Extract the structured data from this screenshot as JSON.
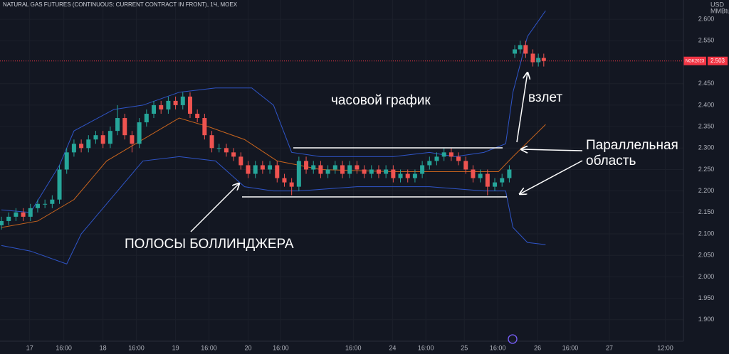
{
  "chart_data": {
    "type": "candlestick",
    "title": "NATURAL GAS FUTURES (CONTINUOUS: CURRENT CONTRACT IN FRONT), 1Ч, MOEX",
    "currency": "USD",
    "unit": "MMBtu",
    "up_color": "#26a69a",
    "down_color": "#ef5350",
    "grid": true,
    "xlim": [
      0,
      188
    ],
    "ylim": [
      1.85,
      2.645
    ],
    "xticks": [
      {
        "value": 7.8,
        "label": "17"
      },
      {
        "value": 17.2,
        "label": "16:00"
      },
      {
        "value": 28,
        "label": "18"
      },
      {
        "value": 37.2,
        "label": "16:00"
      },
      {
        "value": 48,
        "label": "19"
      },
      {
        "value": 57.2,
        "label": "16:00"
      },
      {
        "value": 68,
        "label": "20"
      },
      {
        "value": 77,
        "label": "16:00"
      },
      {
        "value": 97,
        "label": "16:00"
      },
      {
        "value": 107.8,
        "label": "24"
      },
      {
        "value": 117,
        "label": "16:00"
      },
      {
        "value": 127.6,
        "label": "25"
      },
      {
        "value": 136.8,
        "label": "16:00"
      },
      {
        "value": 147.8,
        "label": "26"
      },
      {
        "value": 156.8,
        "label": "16:00"
      },
      {
        "value": 167.6,
        "label": "27"
      },
      {
        "value": 183,
        "label": "12:00"
      }
    ],
    "yticks": [
      {
        "value": 2.6,
        "label": "2.600"
      },
      {
        "value": 2.55,
        "label": "2.550"
      },
      {
        "value": 2.45,
        "label": "2.450"
      },
      {
        "value": 2.4,
        "label": "2.400"
      },
      {
        "value": 2.35,
        "label": "2.350"
      },
      {
        "value": 2.3,
        "label": "2.300"
      },
      {
        "value": 2.25,
        "label": "2.250"
      },
      {
        "value": 2.2,
        "label": "2.200"
      },
      {
        "value": 2.15,
        "label": "2.150"
      },
      {
        "value": 2.1,
        "label": "2.100"
      },
      {
        "value": 2.05,
        "label": "2.050"
      },
      {
        "value": 2.0,
        "label": "2.000"
      },
      {
        "value": 1.95,
        "label": "1.950"
      },
      {
        "value": 1.9,
        "label": "1.900"
      }
    ],
    "x": [
      0,
      2,
      4,
      6,
      8,
      10,
      12,
      14,
      16,
      18,
      20,
      22,
      24,
      26,
      28,
      30,
      32,
      34,
      36,
      38,
      40,
      42,
      44,
      46,
      48,
      50,
      52,
      54,
      56,
      58,
      60,
      62,
      64,
      66,
      68,
      70,
      72,
      74,
      76,
      78,
      80,
      82,
      84,
      86,
      88,
      90,
      92,
      94,
      96,
      98,
      100,
      102,
      104,
      106,
      108,
      110,
      112,
      114,
      116,
      118,
      120,
      122,
      124,
      126,
      128,
      130,
      132,
      134,
      136,
      138,
      140,
      141.5,
      143,
      144.5,
      146.5,
      148,
      149.5
    ],
    "open": [
      2.12,
      2.13,
      2.14,
      2.15,
      2.14,
      2.16,
      2.17,
      2.17,
      2.18,
      2.25,
      2.29,
      2.31,
      2.3,
      2.32,
      2.33,
      2.31,
      2.34,
      2.37,
      2.33,
      2.31,
      2.36,
      2.38,
      2.4,
      2.39,
      2.41,
      2.4,
      2.42,
      2.38,
      2.37,
      2.33,
      2.3,
      2.3,
      2.29,
      2.28,
      2.26,
      2.24,
      2.26,
      2.25,
      2.26,
      2.23,
      2.22,
      2.21,
      2.27,
      2.25,
      2.26,
      2.24,
      2.25,
      2.26,
      2.24,
      2.26,
      2.25,
      2.24,
      2.25,
      2.24,
      2.25,
      2.23,
      2.24,
      2.23,
      2.24,
      2.26,
      2.27,
      2.28,
      2.29,
      2.28,
      2.27,
      2.25,
      2.23,
      2.24,
      2.21,
      2.22,
      2.23,
      2.52,
      2.53,
      2.54,
      2.52,
      2.5,
      2.51
    ],
    "high": [
      2.14,
      2.15,
      2.16,
      2.16,
      2.17,
      2.18,
      2.18,
      2.19,
      2.26,
      2.3,
      2.32,
      2.32,
      2.33,
      2.34,
      2.34,
      2.35,
      2.4,
      2.38,
      2.34,
      2.37,
      2.39,
      2.41,
      2.41,
      2.42,
      2.42,
      2.43,
      2.43,
      2.39,
      2.38,
      2.34,
      2.31,
      2.31,
      2.3,
      2.29,
      2.27,
      2.27,
      2.27,
      2.27,
      2.27,
      2.24,
      2.23,
      2.28,
      2.28,
      2.27,
      2.27,
      2.26,
      2.27,
      2.27,
      2.27,
      2.27,
      2.26,
      2.26,
      2.26,
      2.26,
      2.26,
      2.25,
      2.25,
      2.25,
      2.27,
      2.28,
      2.29,
      2.3,
      2.3,
      2.29,
      2.28,
      2.26,
      2.25,
      2.25,
      2.23,
      2.24,
      2.26,
      2.54,
      2.55,
      2.55,
      2.53,
      2.52,
      2.52
    ],
    "low": [
      2.11,
      2.12,
      2.13,
      2.13,
      2.13,
      2.15,
      2.16,
      2.16,
      2.17,
      2.24,
      2.28,
      2.29,
      2.29,
      2.31,
      2.3,
      2.3,
      2.33,
      2.32,
      2.29,
      2.3,
      2.35,
      2.37,
      2.38,
      2.38,
      2.39,
      2.39,
      2.37,
      2.36,
      2.32,
      2.29,
      2.29,
      2.28,
      2.27,
      2.25,
      2.23,
      2.23,
      2.24,
      2.24,
      2.22,
      2.21,
      2.19,
      2.2,
      2.24,
      2.24,
      2.23,
      2.23,
      2.24,
      2.23,
      2.23,
      2.24,
      2.23,
      2.23,
      2.23,
      2.23,
      2.22,
      2.22,
      2.22,
      2.22,
      2.23,
      2.25,
      2.26,
      2.27,
      2.27,
      2.26,
      2.24,
      2.22,
      2.22,
      2.19,
      2.2,
      2.21,
      2.22,
      2.51,
      2.52,
      2.51,
      2.49,
      2.49,
      2.49
    ],
    "close": [
      2.13,
      2.14,
      2.15,
      2.14,
      2.16,
      2.17,
      2.17,
      2.18,
      2.25,
      2.29,
      2.31,
      2.3,
      2.32,
      2.33,
      2.31,
      2.34,
      2.37,
      2.33,
      2.31,
      2.36,
      2.38,
      2.4,
      2.39,
      2.41,
      2.4,
      2.42,
      2.38,
      2.37,
      2.33,
      2.3,
      2.3,
      2.29,
      2.28,
      2.26,
      2.24,
      2.26,
      2.25,
      2.26,
      2.23,
      2.22,
      2.21,
      2.27,
      2.25,
      2.26,
      2.24,
      2.25,
      2.26,
      2.24,
      2.26,
      2.25,
      2.24,
      2.25,
      2.24,
      2.25,
      2.23,
      2.24,
      2.23,
      2.24,
      2.26,
      2.27,
      2.28,
      2.29,
      2.28,
      2.27,
      2.25,
      2.23,
      2.24,
      2.21,
      2.22,
      2.23,
      2.25,
      2.53,
      2.54,
      2.52,
      2.5,
      2.51,
      2.503
    ],
    "bands": [
      {
        "color": "#2f55c8",
        "x": [
          0,
          8,
          16,
          20,
          31,
          39,
          49,
          59,
          69,
          75,
          80,
          88,
          98,
          108,
          118,
          125,
          133,
          139,
          141,
          145,
          150
        ],
        "values": [
          2.156,
          2.15,
          2.26,
          2.34,
          2.39,
          2.4,
          2.43,
          2.44,
          2.44,
          2.4,
          2.29,
          2.28,
          2.28,
          2.28,
          2.29,
          2.28,
          2.29,
          2.31,
          2.43,
          2.56,
          2.62
        ]
      },
      {
        "color": "#c8641e",
        "x": [
          0,
          10,
          20,
          29,
          39,
          49,
          57,
          67,
          76,
          88,
          108,
          127,
          137,
          141,
          150
        ],
        "values": [
          2.115,
          2.13,
          2.18,
          2.27,
          2.32,
          2.37,
          2.35,
          2.32,
          2.27,
          2.25,
          2.245,
          2.245,
          2.245,
          2.28,
          2.355
        ]
      },
      {
        "color": "#2f55c8",
        "x": [
          0,
          8,
          18,
          22,
          29,
          39,
          49,
          59,
          67,
          75,
          82,
          98,
          118,
          133,
          139,
          141,
          145,
          150
        ],
        "values": [
          2.073,
          2.06,
          2.03,
          2.1,
          2.17,
          2.27,
          2.28,
          2.27,
          2.21,
          2.2,
          2.2,
          2.21,
          2.21,
          2.2,
          2.2,
          2.115,
          2.08,
          2.075
        ]
      }
    ],
    "last_price": {
      "symbol": "NGK2023",
      "value": 2.503,
      "color": "#f23645"
    },
    "annotations": {
      "timeframe": "часовой график",
      "surge": "взлет",
      "parallel": [
        "Параллельная",
        "область"
      ],
      "bands": "ПОЛОСЫ БОЛЛИНДЖЕРА"
    }
  }
}
